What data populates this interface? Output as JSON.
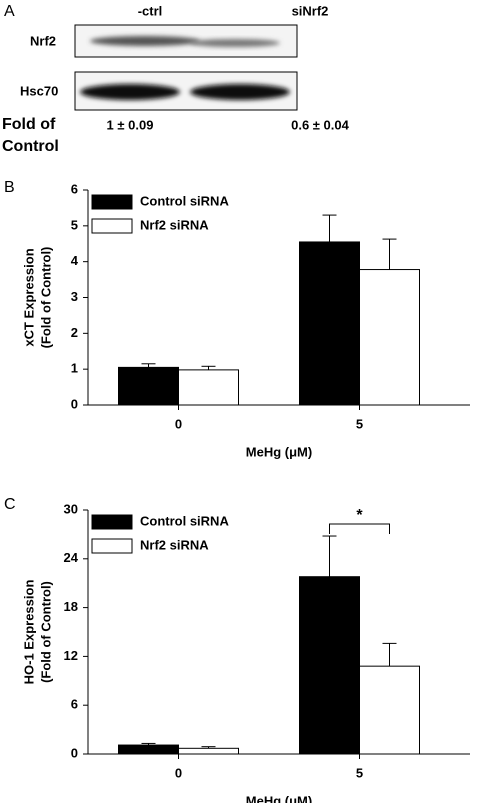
{
  "blot": {
    "panel_label": "A",
    "lanes": [
      "-ctrl",
      "siNrf2"
    ],
    "rows": [
      "Nrf2",
      "Hsc70"
    ],
    "quant_label": [
      "Fold of",
      "Control"
    ],
    "quant_values": [
      "1 ± 0.09",
      "0.6 ± 0.04"
    ]
  },
  "chart_data": [
    {
      "type": "bar",
      "panel_label": "B",
      "ylabel": [
        "xCT Expression",
        "(Fold of Control)"
      ],
      "xlabel": "MeHg (μM)",
      "categories": [
        "0",
        "5"
      ],
      "series": [
        {
          "name": "Control siRNA",
          "color": "#000000",
          "values": [
            1.05,
            4.55
          ],
          "errors": [
            0.1,
            0.75
          ]
        },
        {
          "name": "Nrf2 siRNA",
          "color": "#ffffff",
          "values": [
            0.98,
            3.78
          ],
          "errors": [
            0.1,
            0.85
          ]
        }
      ],
      "ylim": [
        0,
        6
      ],
      "yticks": [
        0,
        1,
        2,
        3,
        4,
        5,
        6
      ],
      "legend": "upper left"
    },
    {
      "type": "bar",
      "panel_label": "C",
      "ylabel": [
        "HO-1 Expression",
        "(Fold of Control)"
      ],
      "xlabel": "MeHg (μM)",
      "categories": [
        "0",
        "5"
      ],
      "series": [
        {
          "name": "Control siRNA",
          "color": "#000000",
          "values": [
            1.1,
            21.8
          ],
          "errors": [
            0.2,
            5
          ]
        },
        {
          "name": "Nrf2 siRNA",
          "color": "#ffffff",
          "values": [
            0.7,
            10.8
          ],
          "errors": [
            0.2,
            2.8
          ]
        }
      ],
      "ylim": [
        0,
        30
      ],
      "yticks": [
        0,
        6,
        12,
        18,
        24,
        30
      ],
      "legend": "upper left",
      "annotation": "*"
    }
  ]
}
